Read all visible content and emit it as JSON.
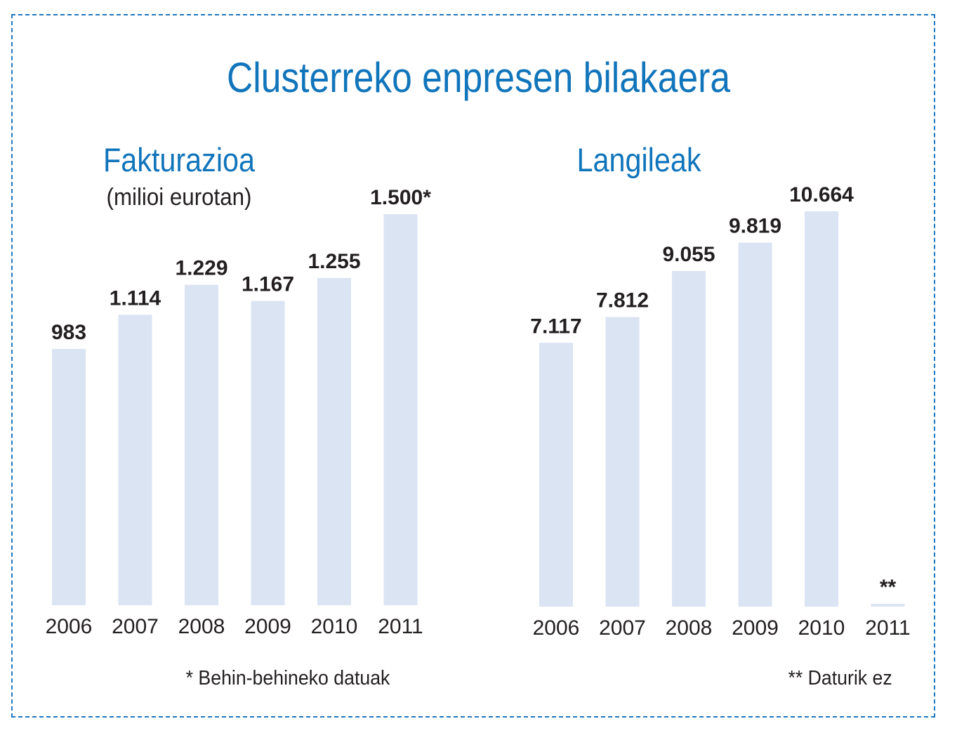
{
  "title": "Clusterreko enpresen bilakaera",
  "colors": {
    "title": "#1175bb",
    "bar": "#dae4f3",
    "text": "#231f20",
    "frame": "#1f78c1"
  },
  "chart_data": [
    {
      "type": "bar",
      "title": "Fakturazioa",
      "subtitle": "(milioi eurotan)",
      "categories": [
        "2006",
        "2007",
        "2008",
        "2009",
        "2010",
        "2011"
      ],
      "values": [
        983,
        1114,
        1229,
        1167,
        1255,
        1500
      ],
      "value_labels": [
        "983",
        "1.114",
        "1.229",
        "1.167",
        "1.255",
        "1.500*"
      ],
      "footnote": "* Behin-behineko datuak"
    },
    {
      "type": "bar",
      "title": "Langileak",
      "categories": [
        "2006",
        "2007",
        "2008",
        "2009",
        "2010",
        "2011"
      ],
      "values": [
        7117,
        7812,
        9055,
        9819,
        10664,
        null
      ],
      "value_labels": [
        "7.117",
        "7.812",
        "9.055",
        "9.819",
        "10.664",
        "**"
      ],
      "footnote": "** Daturik ez"
    }
  ]
}
